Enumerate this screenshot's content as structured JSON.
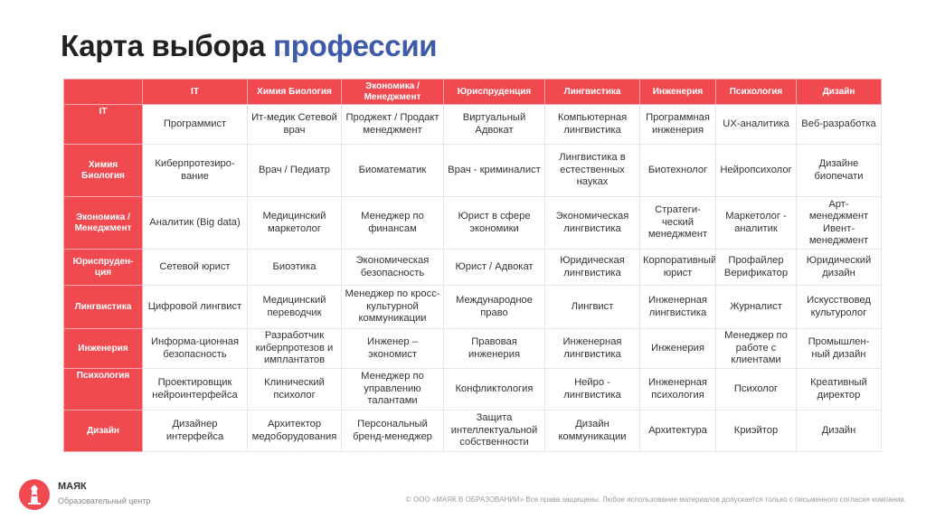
{
  "title": {
    "main": "Карта выбора",
    "accent": "профессии"
  },
  "colors": {
    "header_bg": "#f04a50",
    "accent": "#3f5aa8",
    "text": "#333333"
  },
  "column_headers": [
    "IT",
    "Химия Биология",
    "Экономика / Менеджмент",
    "Юриспруденция",
    "Лингвистика",
    "Инженерия",
    "Психология",
    "Дизайн"
  ],
  "rows": [
    {
      "label": "IT",
      "cells": [
        "Программист",
        "Ит-медик Сетевой врач",
        "Проджект / Продакт менеджмент",
        "Виртуальный Адвокат",
        "Компьютерная лингвистика",
        "Программная инженерия",
        "UX-аналитика",
        "Веб-разработка"
      ]
    },
    {
      "label": "Химия Биология",
      "cells": [
        "Киберпротезиро-вание",
        "Врач / Педиатр",
        "Биоматематик",
        "Врач - криминалист",
        "Лингвистика в естественных науках",
        "Биотехнолог",
        "Нейропсихолог",
        "Дизайне биопечати"
      ]
    },
    {
      "label": "Экономика / Менеджмент",
      "cells": [
        "Аналитик (Big data)",
        "Медицинский маркетолог",
        "Менеджер по финансам",
        "Юрист в сфере экономики",
        "Экономическая лингвистика",
        "Стратеги-ческий менеджмент",
        "Маркетолог - аналитик",
        "Арт-менеджмент Ивент-менеджмент"
      ]
    },
    {
      "label": "Юриспруден-ция",
      "cells": [
        "Сетевой юрист",
        "Биоэтика",
        "Экономическая безопасность",
        "Юрист / Адвокат",
        "Юридическая лингвистика",
        "Корпоративный юрист",
        "Профайлер Верификатор",
        "Юридический дизайн"
      ]
    },
    {
      "label": "Лингвистика",
      "cells": [
        "Цифровой лингвист",
        "Медицинский переводчик",
        "Менеджер по кросс-культурной коммуникации",
        "Международное право",
        "Лингвист",
        "Инженерная лингвистика",
        "Журналист",
        "Искусствовед культуролог"
      ]
    },
    {
      "label": "Инженерия",
      "cells": [
        "Информа-ционная безопасность",
        "Разработчик киберпротезов и имплантатов",
        "Инженер – экономист",
        "Правовая инженерия",
        "Инженерная лингвистика",
        "Инженерия",
        "Менеджер по работе с клиентами",
        "Промышлен-ный дизайн"
      ]
    },
    {
      "label": "Психология",
      "cells": [
        "Проектировщик нейроинтерфейса",
        "Клинический психолог",
        "Менеджер по управлению талантами",
        "Конфликтология",
        "Нейро - лингвистика",
        "Инженерная психология",
        "Психолог",
        "Креативный директор"
      ]
    },
    {
      "label": "Дизайн",
      "cells": [
        "Дизайнер интерфейса",
        "Архитектор медоборудования",
        "Персональный бренд-менеджер",
        "Защита интеллектуальной собственности",
        "Дизайн коммуникации",
        "Архитектура",
        "Криэйтор",
        "Дизайн"
      ]
    }
  ],
  "brand": {
    "name": "МАЯК",
    "subtitle": "Образовательный центр",
    "logo_icon": "lighthouse-icon"
  },
  "copyright": "© ООО «МАЯК В ОБРАЗОВАНИИ» Все права защищены. Любое использование материалов допускается только с письменного согласия компании."
}
